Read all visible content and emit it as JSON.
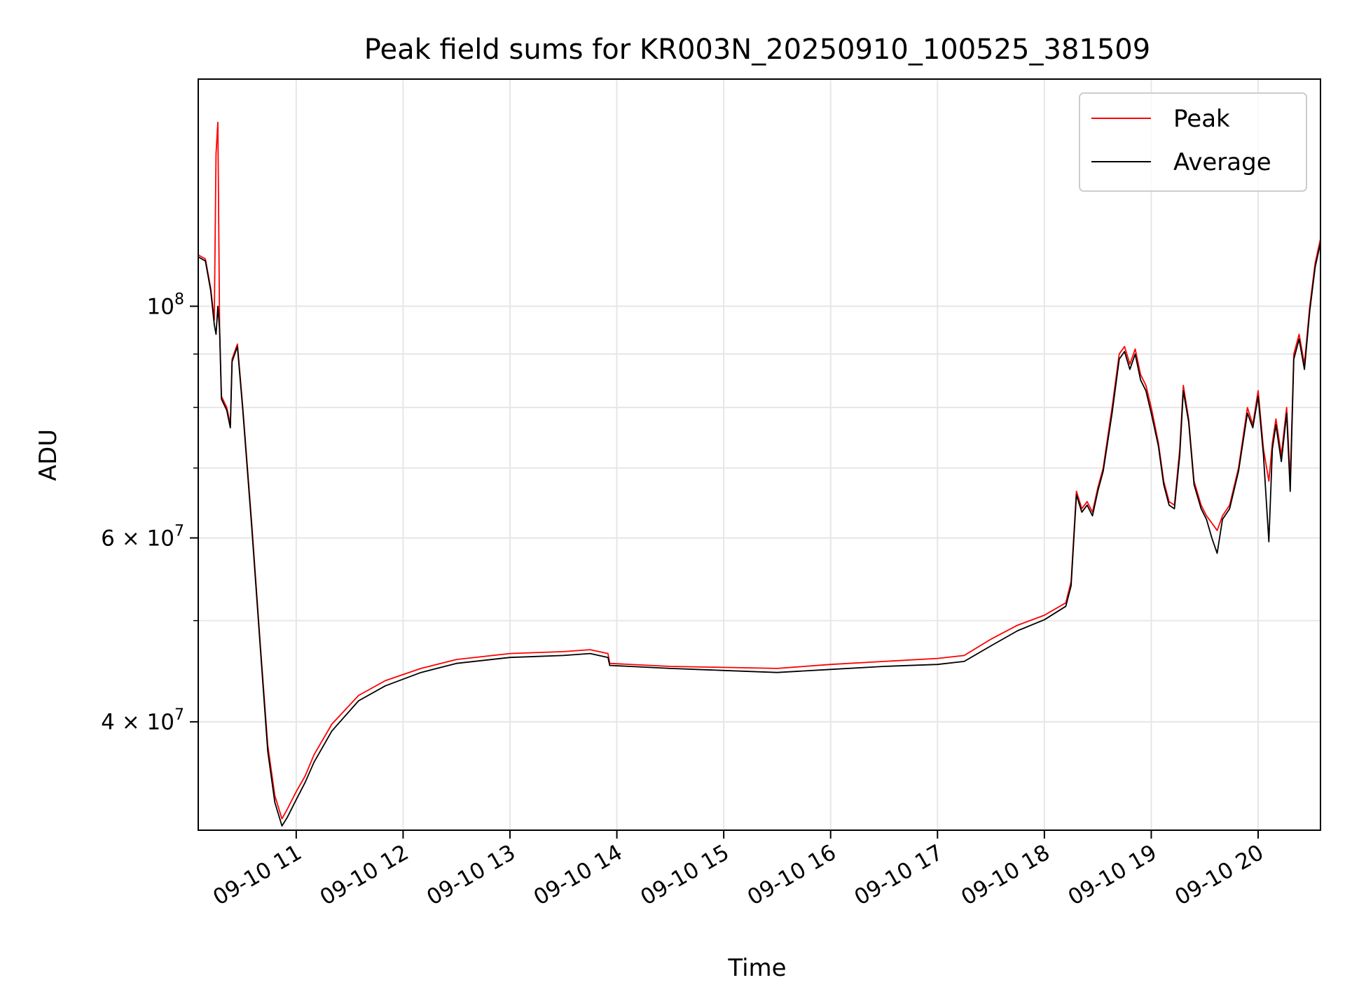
{
  "chart_data": {
    "type": "line",
    "title": "Peak field sums for KR003N_20250910_100525_381509",
    "xlabel": "Time",
    "ylabel": "ADU",
    "y_scale": "log",
    "ylim": [
      31500000,
      165000000
    ],
    "xlim": [
      "2025-09-10 10:05",
      "2025-09-10 20:35"
    ],
    "x_ticks": [
      {
        "value": "2025-09-10 11:00",
        "label": "09-10 11"
      },
      {
        "value": "2025-09-10 12:00",
        "label": "09-10 12"
      },
      {
        "value": "2025-09-10 13:00",
        "label": "09-10 13"
      },
      {
        "value": "2025-09-10 14:00",
        "label": "09-10 14"
      },
      {
        "value": "2025-09-10 15:00",
        "label": "09-10 15"
      },
      {
        "value": "2025-09-10 16:00",
        "label": "09-10 16"
      },
      {
        "value": "2025-09-10 17:00",
        "label": "09-10 17"
      },
      {
        "value": "2025-09-10 18:00",
        "label": "09-10 18"
      },
      {
        "value": "2025-09-10 19:00",
        "label": "09-10 19"
      },
      {
        "value": "2025-09-10 20:00",
        "label": "09-10 20"
      }
    ],
    "y_ticks": [
      {
        "value": 40000000,
        "mantissa": "4",
        "times": "×",
        "base": "10",
        "exponent": "7"
      },
      {
        "value": 60000000,
        "mantissa": "6",
        "times": "×",
        "base": "10",
        "exponent": "7"
      },
      {
        "value": 100000000,
        "mantissa": "",
        "times": "",
        "base": "10",
        "exponent": "8"
      }
    ],
    "y_minor_ticks": [
      50000000,
      70000000,
      80000000,
      90000000
    ],
    "grid": true,
    "legend_position": "top-right",
    "series": [
      {
        "name": "Peak",
        "color": "#ff0000",
        "points": [
          [
            "2025-09-10 10:05",
            112000000
          ],
          [
            "2025-09-10 10:09",
            111000000
          ],
          [
            "2025-09-10 10:12",
            104000000
          ],
          [
            "2025-09-10 10:14",
            97000000
          ],
          [
            "2025-09-10 10:15",
            140000000
          ],
          [
            "2025-09-10 10:16",
            150000000
          ],
          [
            "2025-09-10 10:17",
            95000000
          ],
          [
            "2025-09-10 10:18",
            82000000
          ],
          [
            "2025-09-10 10:21",
            80000000
          ],
          [
            "2025-09-10 10:23",
            77000000
          ],
          [
            "2025-09-10 10:24",
            89000000
          ],
          [
            "2025-09-10 10:27",
            92000000
          ],
          [
            "2025-09-10 10:30",
            80000000
          ],
          [
            "2025-09-10 10:35",
            62000000
          ],
          [
            "2025-09-10 10:40",
            47000000
          ],
          [
            "2025-09-10 10:44",
            38000000
          ],
          [
            "2025-09-10 10:48",
            34000000
          ],
          [
            "2025-09-10 10:52",
            32300000
          ],
          [
            "2025-09-10 10:55",
            33000000
          ],
          [
            "2025-09-10 11:00",
            34300000
          ],
          [
            "2025-09-10 11:05",
            35500000
          ],
          [
            "2025-09-10 11:10",
            37200000
          ],
          [
            "2025-09-10 11:20",
            39800000
          ],
          [
            "2025-09-10 11:35",
            42400000
          ],
          [
            "2025-09-10 11:50",
            43800000
          ],
          [
            "2025-09-10 12:10",
            45000000
          ],
          [
            "2025-09-10 12:30",
            45900000
          ],
          [
            "2025-09-10 13:00",
            46500000
          ],
          [
            "2025-09-10 13:30",
            46700000
          ],
          [
            "2025-09-10 13:45",
            46900000
          ],
          [
            "2025-09-10 13:55",
            46500000
          ],
          [
            "2025-09-10 13:56",
            45500000
          ],
          [
            "2025-09-10 14:30",
            45200000
          ],
          [
            "2025-09-10 15:00",
            45100000
          ],
          [
            "2025-09-10 15:30",
            45000000
          ],
          [
            "2025-09-10 16:00",
            45400000
          ],
          [
            "2025-09-10 16:30",
            45700000
          ],
          [
            "2025-09-10 17:00",
            46000000
          ],
          [
            "2025-09-10 17:15",
            46300000
          ],
          [
            "2025-09-10 17:30",
            48000000
          ],
          [
            "2025-09-10 17:45",
            49500000
          ],
          [
            "2025-09-10 18:00",
            50600000
          ],
          [
            "2025-09-10 18:12",
            52000000
          ],
          [
            "2025-09-10 18:15",
            54500000
          ],
          [
            "2025-09-10 18:18",
            66500000
          ],
          [
            "2025-09-10 18:21",
            64000000
          ],
          [
            "2025-09-10 18:24",
            65000000
          ],
          [
            "2025-09-10 18:27",
            63500000
          ],
          [
            "2025-09-10 18:30",
            67000000
          ],
          [
            "2025-09-10 18:33",
            70000000
          ],
          [
            "2025-09-10 18:38",
            80000000
          ],
          [
            "2025-09-10 18:42",
            90000000
          ],
          [
            "2025-09-10 18:45",
            91500000
          ],
          [
            "2025-09-10 18:48",
            88000000
          ],
          [
            "2025-09-10 18:51",
            91000000
          ],
          [
            "2025-09-10 18:54",
            86000000
          ],
          [
            "2025-09-10 18:57",
            84000000
          ],
          [
            "2025-09-10 19:00",
            80000000
          ],
          [
            "2025-09-10 19:04",
            74000000
          ],
          [
            "2025-09-10 19:07",
            68000000
          ],
          [
            "2025-09-10 19:10",
            65000000
          ],
          [
            "2025-09-10 19:13",
            64500000
          ],
          [
            "2025-09-10 19:16",
            73000000
          ],
          [
            "2025-09-10 19:18",
            84000000
          ],
          [
            "2025-09-10 19:21",
            78000000
          ],
          [
            "2025-09-10 19:24",
            68000000
          ],
          [
            "2025-09-10 19:28",
            64500000
          ],
          [
            "2025-09-10 19:31",
            63000000
          ],
          [
            "2025-09-10 19:34",
            62000000
          ],
          [
            "2025-09-10 19:37",
            61000000
          ],
          [
            "2025-09-10 19:40",
            63000000
          ],
          [
            "2025-09-10 19:44",
            64500000
          ],
          [
            "2025-09-10 19:49",
            70000000
          ],
          [
            "2025-09-10 19:54",
            80000000
          ],
          [
            "2025-09-10 19:57",
            77000000
          ],
          [
            "2025-09-10 20:00",
            83000000
          ],
          [
            "2025-09-10 20:03",
            73000000
          ],
          [
            "2025-09-10 20:06",
            68000000
          ],
          [
            "2025-09-10 20:08",
            74000000
          ],
          [
            "2025-09-10 20:10",
            78000000
          ],
          [
            "2025-09-10 20:13",
            72000000
          ],
          [
            "2025-09-10 20:16",
            80000000
          ],
          [
            "2025-09-10 20:18",
            68000000
          ],
          [
            "2025-09-10 20:20",
            90000000
          ],
          [
            "2025-09-10 20:23",
            94000000
          ],
          [
            "2025-09-10 20:26",
            88000000
          ],
          [
            "2025-09-10 20:29",
            100000000
          ],
          [
            "2025-09-10 20:32",
            110000000
          ],
          [
            "2025-09-10 20:35",
            116000000
          ]
        ]
      },
      {
        "name": "Average",
        "color": "#000000",
        "points": [
          [
            "2025-09-10 10:05",
            111500000
          ],
          [
            "2025-09-10 10:09",
            110500000
          ],
          [
            "2025-09-10 10:12",
            103500000
          ],
          [
            "2025-09-10 10:14",
            96000000
          ],
          [
            "2025-09-10 10:15",
            94000000
          ],
          [
            "2025-09-10 10:16",
            100000000
          ],
          [
            "2025-09-10 10:17",
            95000000
          ],
          [
            "2025-09-10 10:18",
            81500000
          ],
          [
            "2025-09-10 10:21",
            79500000
          ],
          [
            "2025-09-10 10:23",
            76500000
          ],
          [
            "2025-09-10 10:24",
            88500000
          ],
          [
            "2025-09-10 10:27",
            91500000
          ],
          [
            "2025-09-10 10:30",
            79500000
          ],
          [
            "2025-09-10 10:35",
            61500000
          ],
          [
            "2025-09-10 10:40",
            46700000
          ],
          [
            "2025-09-10 10:44",
            37500000
          ],
          [
            "2025-09-10 10:48",
            33500000
          ],
          [
            "2025-09-10 10:52",
            31800000
          ],
          [
            "2025-09-10 10:55",
            32400000
          ],
          [
            "2025-09-10 11:00",
            33700000
          ],
          [
            "2025-09-10 11:05",
            35000000
          ],
          [
            "2025-09-10 11:10",
            36600000
          ],
          [
            "2025-09-10 11:20",
            39200000
          ],
          [
            "2025-09-10 11:35",
            41900000
          ],
          [
            "2025-09-10 11:50",
            43300000
          ],
          [
            "2025-09-10 12:10",
            44600000
          ],
          [
            "2025-09-10 12:30",
            45500000
          ],
          [
            "2025-09-10 13:00",
            46100000
          ],
          [
            "2025-09-10 13:30",
            46300000
          ],
          [
            "2025-09-10 13:45",
            46500000
          ],
          [
            "2025-09-10 13:55",
            46100000
          ],
          [
            "2025-09-10 13:56",
            45300000
          ],
          [
            "2025-09-10 14:30",
            45000000
          ],
          [
            "2025-09-10 15:00",
            44800000
          ],
          [
            "2025-09-10 15:30",
            44600000
          ],
          [
            "2025-09-10 16:00",
            44900000
          ],
          [
            "2025-09-10 16:30",
            45200000
          ],
          [
            "2025-09-10 17:00",
            45400000
          ],
          [
            "2025-09-10 17:15",
            45700000
          ],
          [
            "2025-09-10 17:30",
            47300000
          ],
          [
            "2025-09-10 17:45",
            48900000
          ],
          [
            "2025-09-10 18:00",
            50100000
          ],
          [
            "2025-09-10 18:12",
            51600000
          ],
          [
            "2025-09-10 18:15",
            54000000
          ],
          [
            "2025-09-10 18:18",
            66000000
          ],
          [
            "2025-09-10 18:21",
            63500000
          ],
          [
            "2025-09-10 18:24",
            64500000
          ],
          [
            "2025-09-10 18:27",
            63000000
          ],
          [
            "2025-09-10 18:30",
            66500000
          ],
          [
            "2025-09-10 18:33",
            69500000
          ],
          [
            "2025-09-10 18:38",
            79000000
          ],
          [
            "2025-09-10 18:42",
            89000000
          ],
          [
            "2025-09-10 18:45",
            90500000
          ],
          [
            "2025-09-10 18:48",
            87000000
          ],
          [
            "2025-09-10 18:51",
            90000000
          ],
          [
            "2025-09-10 18:54",
            85000000
          ],
          [
            "2025-09-10 18:57",
            83000000
          ],
          [
            "2025-09-10 19:00",
            79000000
          ],
          [
            "2025-09-10 19:04",
            73500000
          ],
          [
            "2025-09-10 19:07",
            67500000
          ],
          [
            "2025-09-10 19:10",
            64500000
          ],
          [
            "2025-09-10 19:13",
            64000000
          ],
          [
            "2025-09-10 19:16",
            72000000
          ],
          [
            "2025-09-10 19:18",
            83000000
          ],
          [
            "2025-09-10 19:21",
            77500000
          ],
          [
            "2025-09-10 19:24",
            67500000
          ],
          [
            "2025-09-10 19:28",
            64000000
          ],
          [
            "2025-09-10 19:31",
            62500000
          ],
          [
            "2025-09-10 19:34",
            60000000
          ],
          [
            "2025-09-10 19:37",
            58000000
          ],
          [
            "2025-09-10 19:40",
            62500000
          ],
          [
            "2025-09-10 19:44",
            64000000
          ],
          [
            "2025-09-10 19:49",
            69500000
          ],
          [
            "2025-09-10 19:54",
            79000000
          ],
          [
            "2025-09-10 19:57",
            76500000
          ],
          [
            "2025-09-10 20:00",
            82000000
          ],
          [
            "2025-09-10 20:03",
            72000000
          ],
          [
            "2025-09-10 20:06",
            59500000
          ],
          [
            "2025-09-10 20:08",
            73000000
          ],
          [
            "2025-09-10 20:10",
            77000000
          ],
          [
            "2025-09-10 20:13",
            71000000
          ],
          [
            "2025-09-10 20:16",
            79000000
          ],
          [
            "2025-09-10 20:18",
            66500000
          ],
          [
            "2025-09-10 20:20",
            89000000
          ],
          [
            "2025-09-10 20:23",
            93000000
          ],
          [
            "2025-09-10 20:26",
            87000000
          ],
          [
            "2025-09-10 20:29",
            99000000
          ],
          [
            "2025-09-10 20:32",
            109000000
          ],
          [
            "2025-09-10 20:35",
            115000000
          ]
        ]
      }
    ]
  }
}
